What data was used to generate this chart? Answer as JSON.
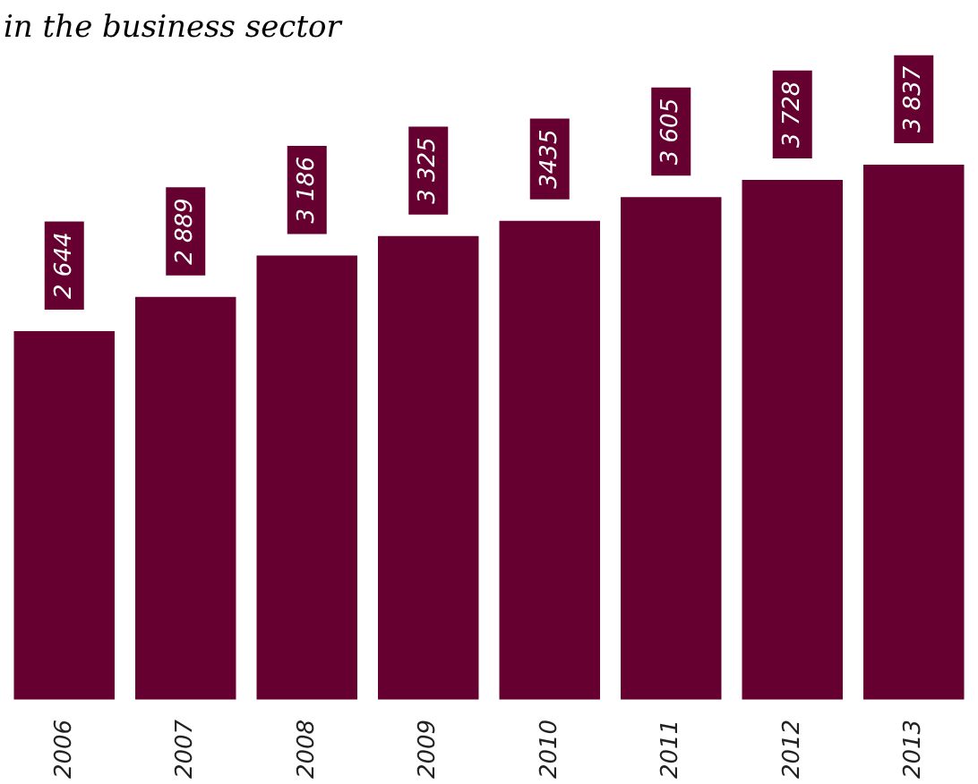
{
  "chart_data": {
    "type": "bar",
    "title": "in the business sector",
    "categories": [
      "2006",
      "2007",
      "2008",
      "2009",
      "2010",
      "2011",
      "2012",
      "2013"
    ],
    "values": [
      2644,
      2889,
      3186,
      3325,
      3435,
      3605,
      3728,
      3837
    ],
    "color": "#650031",
    "value_labels": [
      "2 644",
      "2 889",
      "3 186",
      "3 325",
      "3435",
      "3 605",
      "3 728",
      "3 837"
    ],
    "grid": false,
    "legend": false
  }
}
